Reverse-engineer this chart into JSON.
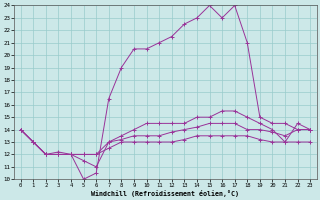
{
  "xlabel": "Windchill (Refroidissement éolien,°C)",
  "bg_color": "#cce8e8",
  "grid_color": "#99cccc",
  "line_color": "#993399",
  "xlim": [
    -0.5,
    23.5
  ],
  "ylim": [
    10,
    24
  ],
  "xticks": [
    0,
    1,
    2,
    3,
    4,
    5,
    6,
    7,
    8,
    9,
    10,
    11,
    12,
    13,
    14,
    15,
    16,
    17,
    18,
    19,
    20,
    21,
    22,
    23
  ],
  "yticks": [
    10,
    11,
    12,
    13,
    14,
    15,
    16,
    17,
    18,
    19,
    20,
    21,
    22,
    23,
    24
  ],
  "series": [
    [
      14.0,
      13.0,
      12.0,
      12.0,
      12.0,
      10.0,
      10.5,
      16.5,
      19.0,
      20.5,
      20.5,
      21.0,
      21.5,
      22.5,
      23.0,
      24.0,
      23.0,
      24.0,
      21.0,
      15.0,
      14.5,
      14.5,
      14.0,
      14.0
    ],
    [
      14.0,
      13.0,
      12.0,
      12.0,
      12.0,
      11.5,
      11.0,
      13.0,
      13.5,
      14.0,
      14.5,
      14.5,
      14.5,
      14.5,
      15.0,
      15.0,
      15.5,
      15.5,
      15.0,
      14.5,
      14.0,
      13.0,
      14.5,
      14.0
    ],
    [
      14.0,
      13.0,
      12.0,
      12.2,
      12.0,
      12.0,
      12.0,
      13.0,
      13.2,
      13.5,
      13.5,
      13.5,
      13.8,
      14.0,
      14.2,
      14.5,
      14.5,
      14.5,
      14.0,
      14.0,
      13.8,
      13.5,
      14.0,
      14.0
    ],
    [
      14.0,
      13.0,
      12.0,
      12.0,
      12.0,
      12.0,
      12.0,
      12.5,
      13.0,
      13.0,
      13.0,
      13.0,
      13.0,
      13.2,
      13.5,
      13.5,
      13.5,
      13.5,
      13.5,
      13.2,
      13.0,
      13.0,
      13.0,
      13.0
    ]
  ]
}
